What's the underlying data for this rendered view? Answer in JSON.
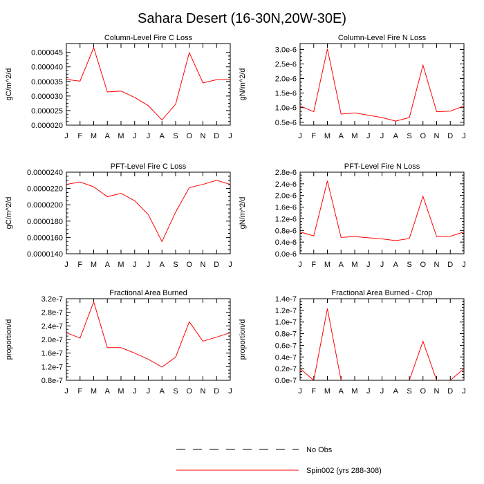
{
  "title": "Sahara Desert (16-30N,20W-30E)",
  "legend": {
    "items": [
      {
        "label": "No Obs",
        "style": "dashed",
        "color": "#000000"
      },
      {
        "label": "Spin002 (yrs 288-308)",
        "style": "solid",
        "color": "#ff0000"
      }
    ]
  },
  "chart_data": [
    {
      "type": "line",
      "title": "Column-Level Fire C Loss",
      "xlabel": "",
      "ylabel": "gC/m^2/d",
      "categories": [
        "J",
        "F",
        "M",
        "A",
        "M",
        "J",
        "J",
        "A",
        "S",
        "O",
        "N",
        "D",
        "J"
      ],
      "ylim": [
        2e-05,
        4.8e-05
      ],
      "yticks": [
        2e-05,
        2.5e-05,
        3e-05,
        3.5e-05,
        4e-05,
        4.5e-05
      ],
      "ytick_labels": [
        "0.000020",
        "0.000025",
        "0.000030",
        "0.000035",
        "0.000040",
        "0.000045"
      ],
      "series": [
        {
          "color": "#ff0000",
          "values": [
            3.57e-05,
            3.51e-05,
            4.66e-05,
            3.14e-05,
            3.17e-05,
            2.95e-05,
            2.67e-05,
            2.18e-05,
            2.72e-05,
            4.49e-05,
            3.45e-05,
            3.56e-05,
            3.56e-05
          ]
        }
      ]
    },
    {
      "type": "line",
      "title": "Column-Level Fire N Loss",
      "xlabel": "",
      "ylabel": "gN/m^2/d",
      "categories": [
        "J",
        "F",
        "M",
        "A",
        "M",
        "J",
        "J",
        "A",
        "S",
        "O",
        "N",
        "D",
        "J"
      ],
      "ylim": [
        4e-07,
        3.2e-06
      ],
      "yticks": [
        5e-07,
        1e-06,
        1.5e-06,
        2e-06,
        2.5e-06,
        3e-06
      ],
      "ytick_labels": [
        "0.5e-6",
        "1.0e-6",
        "1.5e-6",
        "2.0e-6",
        "2.5e-6",
        "3.0e-6"
      ],
      "series": [
        {
          "color": "#ff0000",
          "values": [
            1.06e-06,
            8.6e-07,
            3.02e-06,
            7.8e-07,
            8.2e-07,
            7.4e-07,
            6.6e-07,
            5.4e-07,
            6.6e-07,
            2.46e-06,
            8.6e-07,
            8.8e-07,
            1.06e-06
          ]
        }
      ]
    },
    {
      "type": "line",
      "title": "PFT-Level Fire C Loss",
      "xlabel": "",
      "ylabel": "gC/m^2/d",
      "categories": [
        "J",
        "F",
        "M",
        "A",
        "M",
        "J",
        "J",
        "A",
        "S",
        "O",
        "N",
        "D",
        "J"
      ],
      "ylim": [
        1.4e-05,
        2.4e-05
      ],
      "yticks": [
        1.4e-05,
        1.6e-05,
        1.8e-05,
        2e-05,
        2.2e-05,
        2.4e-05
      ],
      "ytick_labels": [
        "0.0000140",
        "0.0000160",
        "0.0000180",
        "0.0000200",
        "0.0000220",
        "0.0000240"
      ],
      "series": [
        {
          "color": "#ff0000",
          "values": [
            2.25e-05,
            2.28e-05,
            2.22e-05,
            2.1e-05,
            2.14e-05,
            2.05e-05,
            1.88e-05,
            1.55e-05,
            1.91e-05,
            2.21e-05,
            2.25e-05,
            2.3e-05,
            2.25e-05
          ]
        }
      ]
    },
    {
      "type": "line",
      "title": "PFT-Level Fire N Loss",
      "xlabel": "",
      "ylabel": "gN/m^2/d",
      "categories": [
        "J",
        "F",
        "M",
        "A",
        "M",
        "J",
        "J",
        "A",
        "S",
        "O",
        "N",
        "D",
        "J"
      ],
      "ylim": [
        0,
        2.8e-06
      ],
      "yticks": [
        0,
        4e-07,
        8e-07,
        1.2e-06,
        1.6e-06,
        2e-06,
        2.4e-06,
        2.8e-06
      ],
      "ytick_labels": [
        "0.0e-6",
        "0.4e-6",
        "0.8e-6",
        "1.2e-6",
        "1.6e-6",
        "2.0e-6",
        "2.4e-6",
        "2.8e-6"
      ],
      "series": [
        {
          "color": "#ff0000",
          "values": [
            7.5e-07,
            6.1e-07,
            2.5e-06,
            5.6e-07,
            5.9e-07,
            5.5e-07,
            5.1e-07,
            4.5e-07,
            5.2e-07,
            1.97e-06,
            5.9e-07,
            6e-07,
            7.5e-07
          ]
        }
      ]
    },
    {
      "type": "line",
      "title": "Fractional Area Burned",
      "xlabel": "",
      "ylabel": "proportion/d",
      "categories": [
        "J",
        "F",
        "M",
        "A",
        "M",
        "J",
        "J",
        "A",
        "S",
        "O",
        "N",
        "D",
        "J"
      ],
      "ylim": [
        8e-08,
        3.2e-07
      ],
      "yticks": [
        8e-08,
        1.2e-07,
        1.6e-07,
        2e-07,
        2.4e-07,
        2.8e-07,
        3.2e-07
      ],
      "ytick_labels": [
        "0.8e-7",
        "1.2e-7",
        "1.6e-7",
        "2.0e-7",
        "2.4e-7",
        "2.8e-7",
        "3.2e-7"
      ],
      "series": [
        {
          "color": "#ff0000",
          "values": [
            2.2e-07,
            2.04e-07,
            3.11e-07,
            1.76e-07,
            1.76e-07,
            1.6e-07,
            1.42e-07,
            1.19e-07,
            1.48e-07,
            2.52e-07,
            1.95e-07,
            2.07e-07,
            2.2e-07
          ]
        }
      ]
    },
    {
      "type": "line",
      "title": "Fractional Area Burned - Crop",
      "xlabel": "",
      "ylabel": "proportion/d",
      "categories": [
        "J",
        "F",
        "M",
        "A",
        "M",
        "J",
        "J",
        "A",
        "S",
        "O",
        "N",
        "D",
        "J"
      ],
      "ylim": [
        0,
        1.4e-07
      ],
      "yticks": [
        0,
        2e-08,
        4e-08,
        6e-08,
        8e-08,
        1e-07,
        1.2e-07,
        1.4e-07
      ],
      "ytick_labels": [
        "0.0e-7",
        "0.2e-7",
        "0.4e-7",
        "0.6e-7",
        "0.8e-7",
        "1.0e-7",
        "1.2e-7",
        "1.4e-7"
      ],
      "series": [
        {
          "color": "#ff0000",
          "values": [
            2e-08,
            0,
            1.23e-07,
            0,
            0,
            0,
            0,
            0,
            0,
            6.7e-08,
            0,
            0,
            2e-08
          ]
        }
      ]
    }
  ]
}
